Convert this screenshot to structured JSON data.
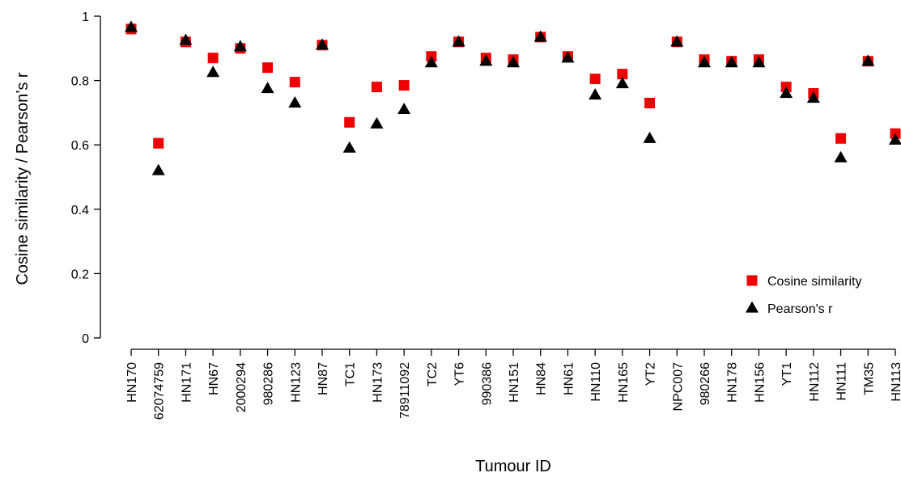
{
  "chart_data": {
    "type": "scatter",
    "xlabel": "Tumour ID",
    "ylabel": "Cosine similarity / Pearson’s r",
    "ylim": [
      0,
      1
    ],
    "yticks": [
      "0",
      "0.2",
      "0.4",
      "0.6",
      "0.8",
      "1"
    ],
    "grid": false,
    "legend_position": "bottom-right",
    "categories": [
      "HN170",
      "62074759",
      "HN171",
      "HN67",
      "2000294",
      "980286",
      "HN123",
      "HN87",
      "TC1",
      "HN173",
      "78911092",
      "TC2",
      "YT6",
      "990386",
      "HN151",
      "HN84",
      "HN61",
      "HN110",
      "HN165",
      "YT2",
      "NPC007",
      "980266",
      "HN178",
      "HN156",
      "YT1",
      "HN112",
      "HN111",
      "TM35",
      "HN113"
    ],
    "series": [
      {
        "name": "Cosine similarity",
        "marker": "square",
        "color": "#ee0000",
        "values": [
          0.96,
          0.605,
          0.92,
          0.87,
          0.9,
          0.84,
          0.795,
          0.91,
          0.67,
          0.78,
          0.785,
          0.875,
          0.92,
          0.87,
          0.865,
          0.935,
          0.875,
          0.805,
          0.82,
          0.73,
          0.92,
          0.865,
          0.86,
          0.865,
          0.78,
          0.76,
          0.62,
          0.86,
          0.635
        ]
      },
      {
        "name": "Pearson's r",
        "marker": "triangle",
        "color": "#000000",
        "values": [
          0.965,
          0.52,
          0.925,
          0.825,
          0.905,
          0.775,
          0.73,
          0.91,
          0.59,
          0.665,
          0.71,
          0.855,
          0.92,
          0.86,
          0.855,
          0.935,
          0.87,
          0.755,
          0.79,
          0.62,
          0.92,
          0.855,
          0.855,
          0.855,
          0.76,
          0.745,
          0.56,
          0.86,
          0.615
        ]
      }
    ]
  }
}
